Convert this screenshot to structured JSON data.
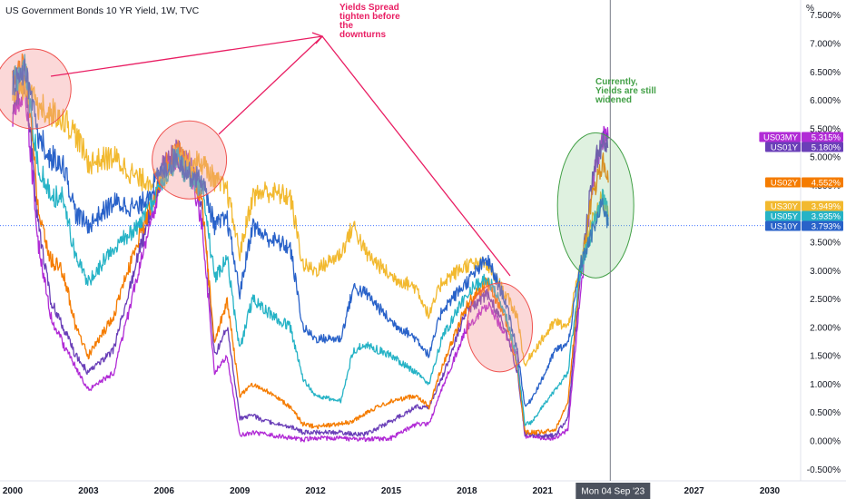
{
  "title": "US Government Bonds 10 YR Yield, 1W, TVC",
  "unit": "%",
  "annotations": {
    "spread": [
      "Yields Spread",
      "tighten before",
      "the",
      "downturns"
    ],
    "current": [
      "Currently,",
      "Yields are still",
      "widened"
    ]
  },
  "crosshair_label": "Mon 04 Sep '23",
  "colors": {
    "US30Y": "#f2b92f",
    "US10Y": "#2962c9",
    "US05Y": "#26b3c6",
    "US02Y": "#f57c00",
    "US01Y": "#6a3fb8",
    "US03MY": "#b12bd6",
    "annotation_pink": "#e91e63",
    "annotation_green": "#43a047"
  },
  "chart_data": {
    "type": "line",
    "title": "US Government Bonds 10 YR Yield, 1W, TVC",
    "ylabel": "%",
    "ylim": [
      -0.6,
      7.6
    ],
    "xlim": [
      2000.0,
      2031.0
    ],
    "y_ticks": [
      "-0.500%",
      "0.000%",
      "0.500%",
      "1.000%",
      "1.500%",
      "2.000%",
      "2.500%",
      "3.000%",
      "3.500%",
      "4.000%",
      "4.500%",
      "5.000%",
      "5.500%",
      "6.000%",
      "6.500%",
      "7.000%",
      "7.500%"
    ],
    "x_ticks": [
      "2000",
      "2003",
      "2006",
      "2009",
      "2012",
      "2015",
      "2018",
      "2021",
      "2024",
      "2027",
      "2030"
    ],
    "grid": false,
    "legend": "right-axis badges",
    "series": [
      {
        "name": "US30Y",
        "last": "3.949%",
        "x": [
          2000,
          2000.5,
          2001,
          2001.5,
          2002,
          2002.5,
          2003,
          2004,
          2005,
          2006,
          2006.5,
          2007,
          2007.5,
          2008,
          2008.5,
          2009,
          2009.5,
          2010,
          2011,
          2011.5,
          2012,
          2013,
          2013.5,
          2014,
          2015,
          2016,
          2016.5,
          2017,
          2018,
          2018.8,
          2019.5,
          2020,
          2020.3,
          2020.5,
          2021,
          2021.5,
          2022,
          2022.5,
          2023,
          2023.4,
          2023.6
        ],
        "y": [
          6.2,
          6.2,
          5.9,
          5.8,
          5.7,
          5.4,
          4.9,
          5.0,
          4.6,
          4.6,
          5.1,
          4.9,
          4.9,
          4.6,
          4.4,
          3.3,
          4.3,
          4.4,
          4.3,
          3.1,
          3.0,
          3.3,
          3.8,
          3.3,
          2.9,
          2.7,
          2.2,
          2.8,
          3.1,
          3.1,
          2.6,
          2.2,
          1.3,
          1.5,
          1.8,
          2.1,
          2.0,
          3.1,
          3.9,
          4.3,
          3.95
        ]
      },
      {
        "name": "US10Y",
        "last": "3.793%",
        "x": [
          2000,
          2000.5,
          2001,
          2001.5,
          2002,
          2002.5,
          2003,
          2004,
          2005,
          2006,
          2006.5,
          2007,
          2007.5,
          2008,
          2008.5,
          2009,
          2009.5,
          2010,
          2011,
          2011.5,
          2012,
          2013,
          2013.5,
          2014,
          2015,
          2016,
          2016.5,
          2017,
          2018,
          2018.8,
          2019.5,
          2020,
          2020.3,
          2020.5,
          2021,
          2021.5,
          2022,
          2022.5,
          2023,
          2023.4,
          2023.6
        ],
        "y": [
          6.3,
          6.5,
          5.4,
          5.0,
          4.9,
          4.0,
          3.8,
          4.2,
          4.1,
          4.8,
          5.0,
          4.7,
          4.6,
          3.8,
          3.9,
          2.6,
          3.8,
          3.6,
          3.4,
          2.0,
          1.8,
          1.8,
          2.7,
          2.6,
          2.1,
          1.8,
          1.5,
          2.3,
          2.8,
          3.2,
          2.5,
          1.6,
          0.6,
          0.7,
          1.1,
          1.6,
          1.7,
          3.1,
          3.7,
          4.2,
          3.79
        ]
      },
      {
        "name": "US05Y",
        "last": "3.935%",
        "x": [
          2000,
          2000.5,
          2001,
          2001.5,
          2002,
          2002.5,
          2003,
          2004,
          2005,
          2006,
          2006.5,
          2007,
          2007.5,
          2008,
          2008.5,
          2009,
          2009.5,
          2010,
          2011,
          2011.5,
          2012,
          2013,
          2013.5,
          2014,
          2015,
          2016,
          2016.5,
          2017,
          2018,
          2018.8,
          2019.5,
          2020,
          2020.3,
          2020.5,
          2021,
          2021.5,
          2022,
          2022.5,
          2023,
          2023.4,
          2023.6
        ],
        "y": [
          6.3,
          6.6,
          4.9,
          4.3,
          4.3,
          3.2,
          2.8,
          3.4,
          3.8,
          4.6,
          5.0,
          4.6,
          4.5,
          2.9,
          3.2,
          1.6,
          2.5,
          2.3,
          2.0,
          1.1,
          0.8,
          0.7,
          1.6,
          1.7,
          1.5,
          1.2,
          1.0,
          1.8,
          2.6,
          2.9,
          2.3,
          1.4,
          0.3,
          0.3,
          0.6,
          0.9,
          1.2,
          3.0,
          3.8,
          4.4,
          3.94
        ]
      },
      {
        "name": "US02Y",
        "last": "4.552%",
        "x": [
          2000,
          2000.5,
          2001,
          2001.5,
          2002,
          2002.5,
          2003,
          2004,
          2005,
          2006,
          2006.5,
          2007,
          2007.5,
          2008,
          2008.5,
          2009,
          2009.5,
          2010,
          2011,
          2011.5,
          2012,
          2013,
          2013.5,
          2014,
          2015,
          2016,
          2016.5,
          2017,
          2018,
          2018.8,
          2019.5,
          2020,
          2020.3,
          2020.5,
          2021,
          2021.5,
          2022,
          2022.5,
          2023,
          2023.4,
          2023.6
        ],
        "y": [
          6.3,
          6.7,
          4.2,
          3.2,
          3.0,
          2.0,
          1.5,
          2.2,
          3.6,
          4.8,
          5.1,
          4.8,
          4.2,
          1.7,
          2.5,
          0.8,
          1.0,
          0.9,
          0.6,
          0.3,
          0.25,
          0.3,
          0.35,
          0.5,
          0.7,
          0.8,
          0.6,
          1.3,
          2.4,
          2.8,
          2.2,
          1.3,
          0.15,
          0.15,
          0.15,
          0.2,
          0.7,
          3.0,
          4.4,
          4.9,
          4.55
        ]
      },
      {
        "name": "US01Y",
        "last": "5.180%",
        "x": [
          2000,
          2000.5,
          2001,
          2001.5,
          2002,
          2002.5,
          2003,
          2004,
          2005,
          2006,
          2006.5,
          2007,
          2007.5,
          2008,
          2008.5,
          2009,
          2009.5,
          2010,
          2011,
          2011.5,
          2012,
          2013,
          2013.5,
          2014,
          2015,
          2016,
          2016.5,
          2017,
          2018,
          2018.8,
          2019.5,
          2020,
          2020.3,
          2020.5,
          2021,
          2021.5,
          2022,
          2022.5,
          2023,
          2023.4,
          2023.6
        ],
        "y": [
          6.0,
          6.4,
          3.8,
          2.5,
          2.0,
          1.5,
          1.2,
          1.6,
          3.3,
          4.9,
          5.1,
          4.9,
          4.2,
          1.5,
          2.0,
          0.4,
          0.45,
          0.35,
          0.25,
          0.15,
          0.15,
          0.15,
          0.12,
          0.12,
          0.35,
          0.6,
          0.6,
          1.1,
          2.3,
          2.6,
          2.0,
          1.2,
          0.12,
          0.12,
          0.08,
          0.1,
          0.4,
          2.9,
          4.8,
          5.3,
          5.18
        ]
      },
      {
        "name": "US03MY",
        "last": "5.315%",
        "x": [
          2000,
          2000.5,
          2001,
          2001.5,
          2002,
          2002.5,
          2003,
          2004,
          2005,
          2006,
          2006.5,
          2007,
          2007.5,
          2008,
          2008.5,
          2009,
          2009.5,
          2010,
          2011,
          2011.5,
          2012,
          2013,
          2013.5,
          2014,
          2015,
          2016,
          2016.5,
          2017,
          2018,
          2018.8,
          2019.5,
          2020,
          2020.3,
          2020.5,
          2021,
          2021.5,
          2022,
          2022.5,
          2023,
          2023.4,
          2023.6
        ],
        "y": [
          5.7,
          6.2,
          3.5,
          2.2,
          1.7,
          1.3,
          0.9,
          1.2,
          3.0,
          4.8,
          5.0,
          4.9,
          3.8,
          1.2,
          1.5,
          0.1,
          0.15,
          0.12,
          0.05,
          0.02,
          0.05,
          0.05,
          0.03,
          0.03,
          0.05,
          0.3,
          0.3,
          0.9,
          2.0,
          2.4,
          1.9,
          1.5,
          0.05,
          0.1,
          0.05,
          0.05,
          0.2,
          2.6,
          4.6,
          5.4,
          5.32
        ]
      }
    ]
  }
}
